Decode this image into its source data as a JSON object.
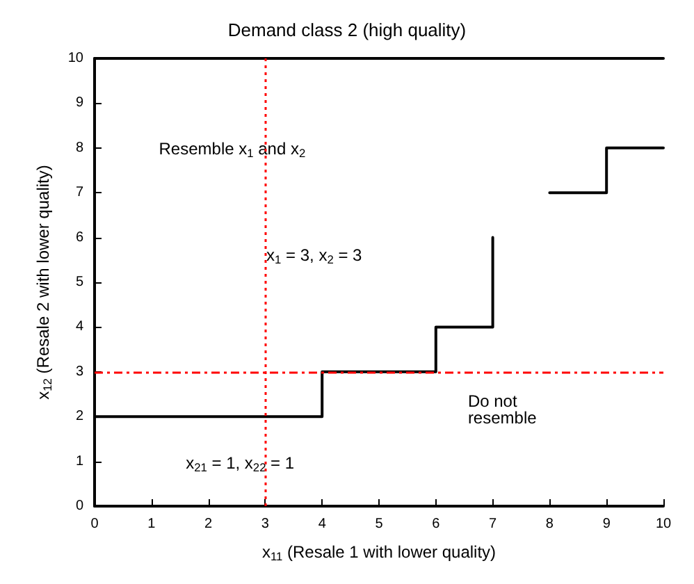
{
  "chart_data": {
    "type": "line",
    "title": "Demand class 2 (high quality)",
    "xlabel": "x$_{11}$ (Resale 1 with lower quality)",
    "ylabel": "x$_{12}$ (Resale 2 with lower quality)",
    "series": [
      {
        "color": "#000000",
        "x": [
          0,
          4,
          4,
          6,
          6,
          7,
          7,
          7.5,
          8,
          9,
          9,
          10
        ],
        "values": [
          2,
          2,
          3,
          3,
          4,
          4,
          6,
          null,
          7,
          7,
          8,
          8
        ]
      }
    ],
    "xlim": [
      0,
      10
    ],
    "xticks": [
      0,
      1,
      2,
      3,
      4,
      5,
      6,
      7,
      8,
      9,
      10
    ],
    "ylim": [
      0,
      10
    ],
    "yticks": [
      0,
      1,
      2,
      3,
      4,
      5,
      6,
      7,
      8,
      9,
      10
    ],
    "ref_lines": [
      {
        "axis": "x",
        "value": 3,
        "color": "#ff0000",
        "line_style": "dotted"
      },
      {
        "axis": "y",
        "value": 3,
        "color": "#ff0000",
        "line_style": "dashed"
      }
    ],
    "annotations": [
      "Resemble x$_{1}$ and x$_{2}$",
      "x$_{1}$ = 3, x$_{2}$ = 3",
      "Do not\nresemble",
      "x$_{21}$ = 1, x$_{22}$ = 1"
    ],
    "grid": false,
    "marker": "none",
    "line_style": "solid"
  }
}
